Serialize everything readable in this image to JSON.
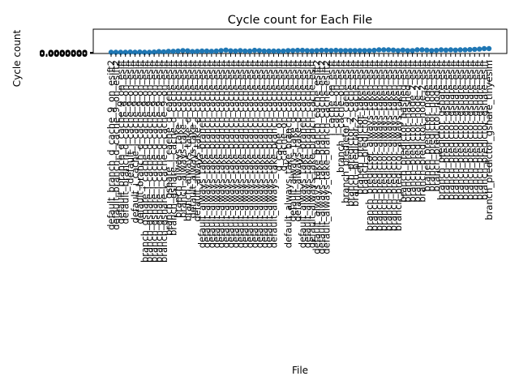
{
  "chart_data": {
    "type": "line",
    "title": "Cycle count for Each File",
    "xlabel": "File",
    "ylabel": "Cycle count",
    "grid": false,
    "legend": "none",
    "line_color": "#1f77b4",
    "marker": "circle",
    "y_tick_labels": [
      "0.0000000",
      "0.0000000",
      "0.0000000",
      "0.0000000",
      "0.0000000",
      "0.0000000",
      "0.0000000",
      "0.0000000",
      "0.0000000",
      "0.0000000",
      "0.0000000",
      "0.0000000"
    ],
    "ylim": [
      0,
      1
    ],
    "categories": [
      "default_branch_d_cache_9_on_esift2",
      "default_branch_d_cache_9_on_esift2",
      "default_branch_d_cache_9_on_esift",
      "default_branch_d_cache_9_on_esift",
      "default_i_cache_9_on_esift",
      "default_i_cache_i_cache_9_on_esift",
      "default_branch_d_cache_9_on_esift",
      "branch_gshare_i_cache_d_cache_9_on_esift",
      "branch_gshare_i_cache_d_cache_9_on_esift",
      "branch_gshare_i_cache_d_cache_9_on_esift",
      "branch_gshare_i_cache_d_cache_9_on_esift",
      "branch_gshare_i_cache_d_cache_9_on_esift",
      "branch_gshare_i_cache_d_cache_esift",
      "branch_gshare_i_cache_d_cache_esift",
      "branch_always_take_i_cache_esift",
      "branch_always_take_i_cache_esift",
      "branch_always_take_d_cache_esift",
      "default_always_take_i_cache_esift",
      "default_always_take_d_cache_esift",
      "default_always_take_branch_cache_esift",
      "default_always_take_branch_cache_esift",
      "default_always_take_branch_cache_esift",
      "default_always_take_branch_cache_esift",
      "default_always_take_branch_cache_esift",
      "default_always_take_branch_cache_esift",
      "default_always_take_branch_cache_esift",
      "default_always_take_branch_cache_esift",
      "default_always_take_branch_cache_esift",
      "default_always_take_branch_cache_esift",
      "default_always_take_branch_cache_esift",
      "default_always_take_branch_cache_esift",
      "default_always_take_branch_cache_esift",
      "default_always_take_branch_cache_esift",
      "default_always_take_branch_cache_esift",
      "default_always_take_branch_cache_esift",
      "d_cache_on_cache_esift",
      "d_cache_on_cache_esift",
      "default_always_take_branch_cache_esift",
      "default_always_take_d_cache_esift",
      "default_always_take_d_cache_esift",
      "default_always_take_branch_cache_esift",
      "default_always_take_branch_cache_esift",
      "default_always_take_branch_cache_esift",
      "default_always_take_branch_cache_esift2",
      "default_always_take_branch_cache_esift2",
      "default_always_take_branch_cache_esift2",
      "i_cache_on_esift",
      "i_cache_on_esift",
      "branch_i_cache_on_esift",
      "branch_predictor_i_cache_esift",
      "branch_predictor_2_cache_esift",
      "branch_predictor_2_cache_esift",
      "branch_predictor_taken_esift",
      "branch_predictor_taken_esift",
      "branch_predictor_always_taken_esift",
      "branch_predictor_always_taken_esift",
      "branch_predictor_always_taken_esift",
      "branch_predictor_always_taken_esift",
      "branch_predictor_always_taken_esift",
      "branch_predictor_always_taken_esift",
      "branch_predictor_always_taken_esift",
      "branch_predictor_hashed_esift",
      "branch_predictor_hashed_esift",
      "branch_predictor_node_2_esift",
      "branch_predictor_node_2_esift",
      "branch_predictor_node_2_esift",
      "branch_predictor_node_esift",
      "branch_predictor_node_esift",
      "branch_predictor_node_esift",
      "branch_predictor_gshare_esift",
      "branch_predictor_gshare_esift",
      "branch_predictor_gshare_esift",
      "branch_predictor_gshare_esift",
      "branch_predictor_gshare_esift",
      "branch_predictor_gshare_esift",
      "branch_predictor_gshare_esift",
      "branch_predictor_gshare_esift",
      "branch_predictor_gshare_esift",
      "branch_predictor_gshare_esift",
      "branch_predictor_gshare_tinyesim"
    ],
    "values": [
      0.05,
      0.05,
      0.05,
      0.05,
      0.06,
      0.05,
      0.06,
      0.05,
      0.05,
      0.06,
      0.08,
      0.07,
      0.09,
      0.09,
      0.1,
      0.12,
      0.11,
      0.08,
      0.09,
      0.1,
      0.1,
      0.09,
      0.1,
      0.12,
      0.14,
      0.11,
      0.1,
      0.12,
      0.1,
      0.1,
      0.13,
      0.12,
      0.1,
      0.1,
      0.1,
      0.1,
      0.1,
      0.12,
      0.12,
      0.13,
      0.13,
      0.12,
      0.11,
      0.12,
      0.13,
      0.13,
      0.12,
      0.13,
      0.12,
      0.12,
      0.12,
      0.12,
      0.12,
      0.12,
      0.12,
      0.13,
      0.15,
      0.15,
      0.15,
      0.14,
      0.12,
      0.14,
      0.12,
      0.12,
      0.15,
      0.15,
      0.14,
      0.12,
      0.13,
      0.15,
      0.14,
      0.15,
      0.14,
      0.15,
      0.15,
      0.16,
      0.17,
      0.18,
      0.2,
      0.2
    ]
  }
}
